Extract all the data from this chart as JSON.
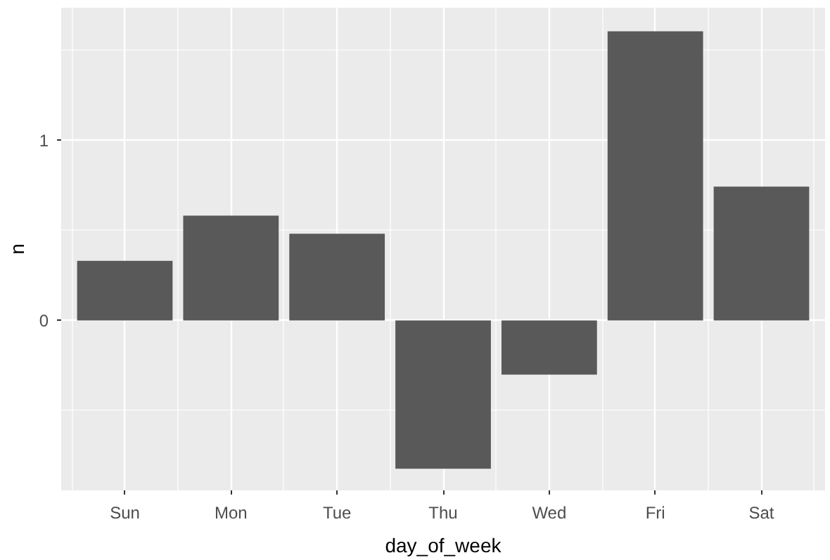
{
  "chart_data": {
    "type": "bar",
    "xlabel": "day_of_week",
    "ylabel": "n",
    "categories": [
      "Sun",
      "Mon",
      "Tue",
      "Thu",
      "Wed",
      "Fri",
      "Sat"
    ],
    "values": [
      0.33,
      0.58,
      0.48,
      -0.82,
      -0.3,
      1.6,
      0.74
    ],
    "color": "#595959",
    "ylim": [
      -0.94,
      1.73
    ],
    "yticks": [
      0,
      1
    ],
    "grid": true
  }
}
